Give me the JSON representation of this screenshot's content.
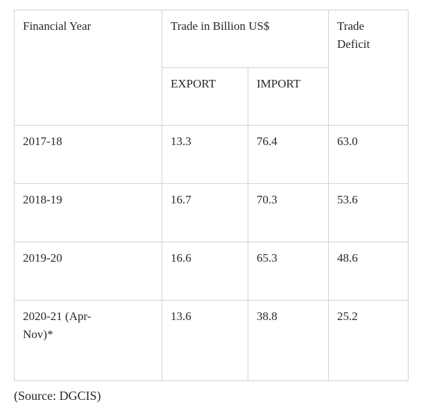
{
  "chart_data": {
    "type": "table",
    "header": {
      "row_label": "Financial Year",
      "group_label": "Trade in Billion US$",
      "export_label": "EXPORT",
      "import_label": "IMPORT",
      "deficit_label": "Trade Deficit"
    },
    "rows": [
      {
        "year": "2017-18",
        "export": "13.3",
        "import": "76.4",
        "deficit": "63.0"
      },
      {
        "year": "2018-19",
        "export": "16.7",
        "import": "70.3",
        "deficit": "53.6"
      },
      {
        "year": "2019-20",
        "export": "16.6",
        "import": "65.3",
        "deficit": "48.6"
      },
      {
        "year": "2020-21 (Apr-Nov)*",
        "export": "13.6",
        "import": "38.8",
        "deficit": "25.2"
      }
    ],
    "source": "(Source: DGCIS)",
    "layout": {
      "grid": "bordered",
      "units": "Billion US$"
    }
  },
  "colors": {
    "text": "#23282d",
    "border": "#d2d2d2",
    "background": "#ffffff"
  }
}
